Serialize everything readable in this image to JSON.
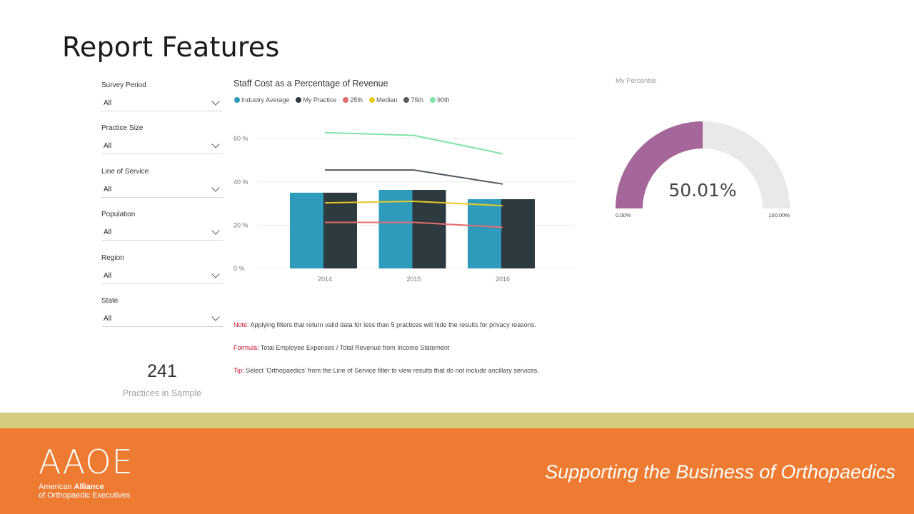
{
  "page": {
    "title": "Report Features"
  },
  "slicers": [
    {
      "label": "Survey Period",
      "value": "All"
    },
    {
      "label": "Practice Size",
      "value": "All"
    },
    {
      "label": "Line of Service",
      "value": "All"
    },
    {
      "label": "Population",
      "value": "All"
    },
    {
      "label": "Region",
      "value": "All"
    },
    {
      "label": "State",
      "value": "All"
    }
  ],
  "card": {
    "value": "241",
    "label": "Practices in Sample"
  },
  "chart_data": {
    "type": "bar",
    "title": "Staff Cost as a Percentage of Revenue",
    "categories": [
      "2014",
      "2015",
      "2016"
    ],
    "yticks": [
      "0 %",
      "20 %",
      "40 %",
      "60 %"
    ],
    "ylim": [
      0,
      66
    ],
    "grid": true,
    "legend_position": "top-left",
    "bar_series": [
      {
        "name": "Industry Average",
        "color": "#2e9bbd",
        "values": [
          35,
          36.3,
          32
        ]
      },
      {
        "name": "My Practice",
        "color": "#2d3a40",
        "values": [
          35,
          36.3,
          32
        ]
      }
    ],
    "line_series": [
      {
        "name": "25th",
        "color": "#e66c6c",
        "values": [
          21.3,
          21.3,
          19
        ]
      },
      {
        "name": "Median",
        "color": "#e7c825",
        "values": [
          30.3,
          31,
          29
        ]
      },
      {
        "name": "75th",
        "color": "#555a5e",
        "values": [
          45.5,
          45.5,
          39
        ]
      },
      {
        "name": "90th",
        "color": "#7de3a8",
        "values": [
          62.8,
          61.5,
          53
        ]
      }
    ]
  },
  "notes": [
    {
      "key": "Note:",
      "text": " Applying filters that return valid data for less than 5 practices will hide the results for privacy reasons."
    },
    {
      "key": "Formula:",
      "text": " Total Employee Expenses / Total Revenue from Income Statement"
    },
    {
      "key": "Tip:",
      "text": " Select 'Orthopaedics' from the Line of Service filter to view results that do not include ancillary services."
    }
  ],
  "gauge": {
    "title": "My Percentile",
    "value_label": "50.01%",
    "value": 50.01,
    "min_label": "0.00%",
    "max_label": "100.00%",
    "fill_color": "#a5669a",
    "track_color": "#e9e9e9"
  },
  "footer": {
    "logo": "AAOE",
    "org_line1_prefix": "American ",
    "org_line1_bold": "Alliance",
    "org_line2": "of Orthopaedic Executives",
    "tagline": "Supporting the Business of Orthopaedics"
  }
}
